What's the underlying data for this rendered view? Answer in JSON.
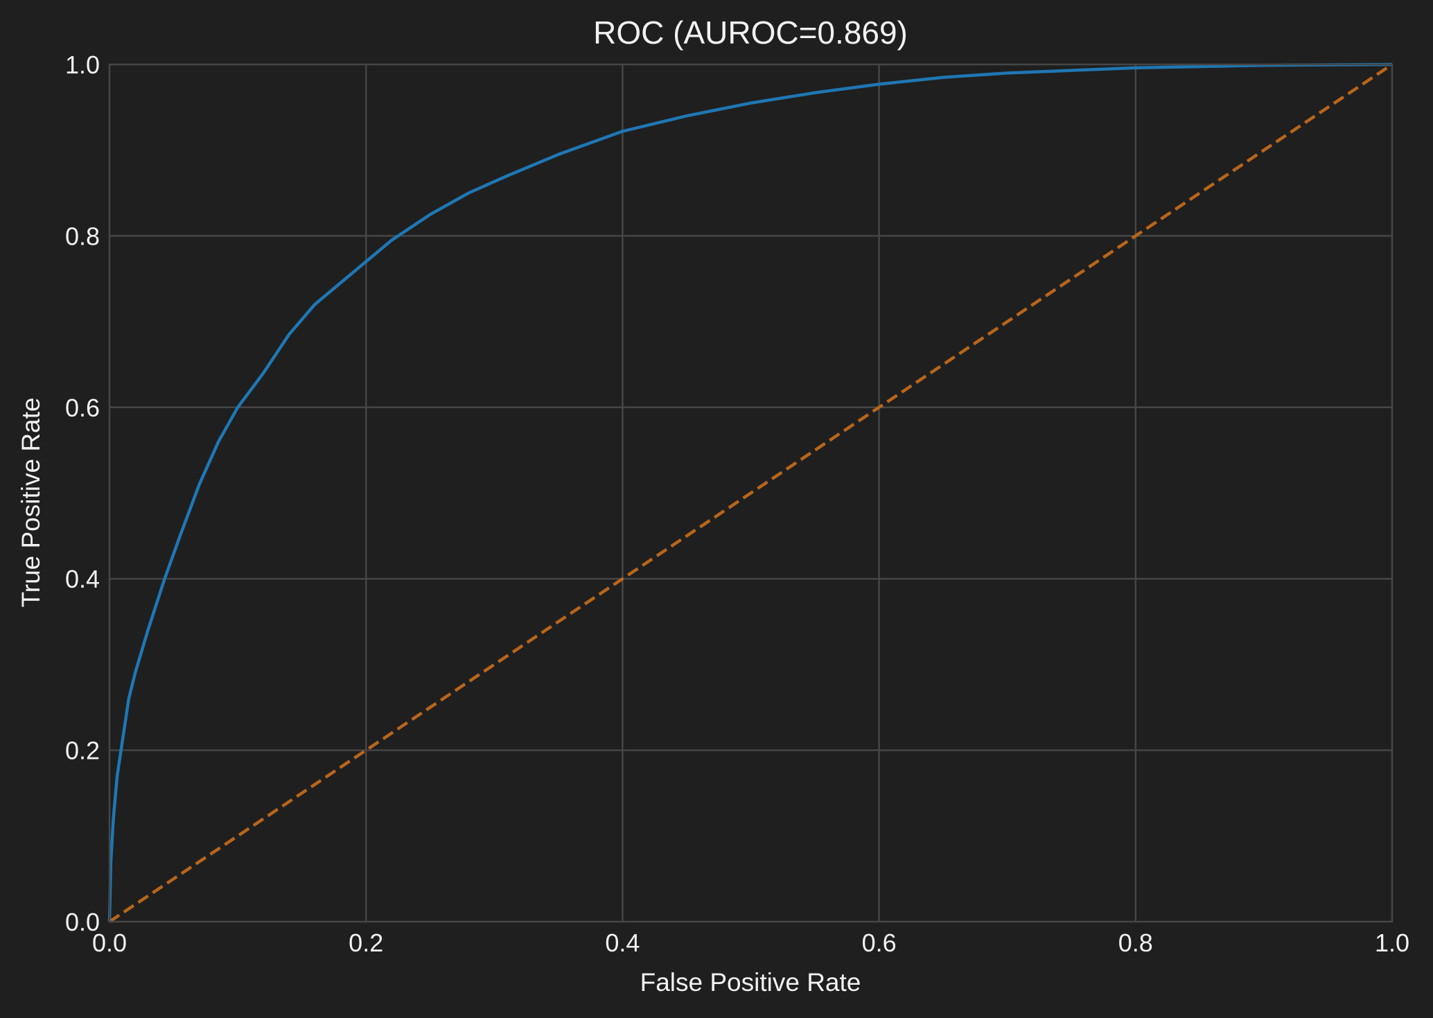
{
  "chart_data": {
    "type": "line",
    "title": "ROC (AUROC=0.869)",
    "xlabel": "False Positive Rate",
    "ylabel": "True Positive Rate",
    "xlim": [
      0.0,
      1.0
    ],
    "ylim": [
      0.0,
      1.0
    ],
    "grid": true,
    "legend": "none",
    "x_ticks": [
      "0.0",
      "0.2",
      "0.4",
      "0.6",
      "0.8",
      "1.0"
    ],
    "y_ticks": [
      "0.0",
      "0.2",
      "0.4",
      "0.6",
      "0.8",
      "1.0"
    ],
    "colors": {
      "background": "#1f1f1f",
      "grid": "#464646",
      "text": "#f2f2f2",
      "roc": "#1f77b4",
      "reference": "#b8651b"
    },
    "series": [
      {
        "style": "solid",
        "color": "#1f77b4",
        "x": [
          0.0,
          0.001,
          0.003,
          0.006,
          0.01,
          0.015,
          0.02,
          0.03,
          0.043,
          0.055,
          0.07,
          0.085,
          0.1,
          0.12,
          0.14,
          0.16,
          0.18,
          0.2,
          0.22,
          0.25,
          0.28,
          0.31,
          0.35,
          0.4,
          0.45,
          0.5,
          0.55,
          0.6,
          0.65,
          0.7,
          0.8,
          0.9,
          1.0
        ],
        "y": [
          0.0,
          0.07,
          0.12,
          0.17,
          0.21,
          0.26,
          0.29,
          0.34,
          0.4,
          0.45,
          0.51,
          0.56,
          0.6,
          0.64,
          0.685,
          0.72,
          0.745,
          0.77,
          0.795,
          0.825,
          0.85,
          0.87,
          0.895,
          0.922,
          0.94,
          0.955,
          0.967,
          0.977,
          0.985,
          0.99,
          0.996,
          0.999,
          1.0
        ]
      },
      {
        "style": "dashed",
        "color": "#b8651b",
        "x": [
          0.0,
          1.0
        ],
        "y": [
          0.0,
          1.0
        ]
      }
    ]
  }
}
